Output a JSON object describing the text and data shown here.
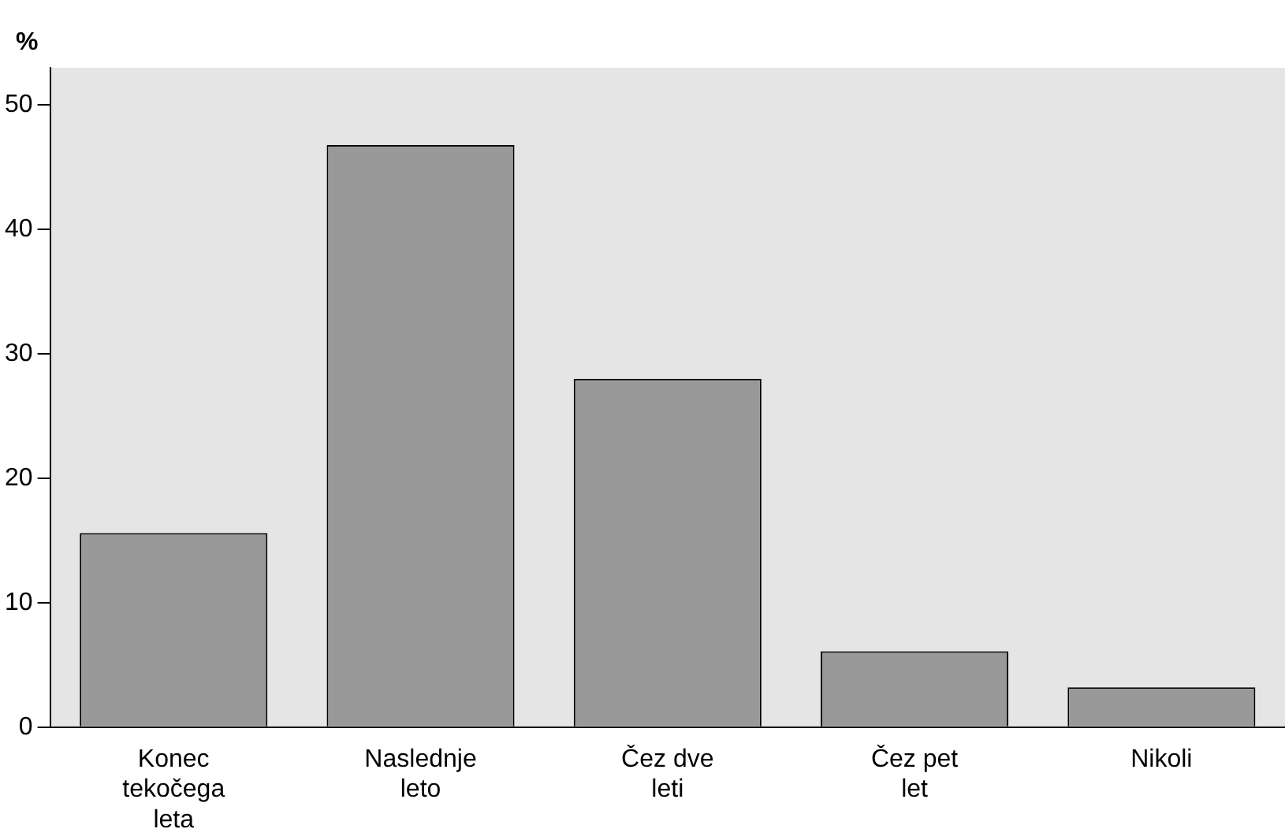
{
  "chart_data": {
    "type": "bar",
    "ylabel": "%",
    "categories": [
      "Konec tekočega leta",
      "Naslednje leto",
      "Čez dve leti",
      "Čez pet let",
      "Nikoli"
    ],
    "values": [
      15.6,
      46.8,
      28.0,
      6.1,
      3.2
    ],
    "color": "#999999",
    "ylim": [
      0,
      53
    ],
    "yticks": [
      0,
      10,
      20,
      30,
      40,
      50
    ],
    "grid": false,
    "legend": false
  }
}
